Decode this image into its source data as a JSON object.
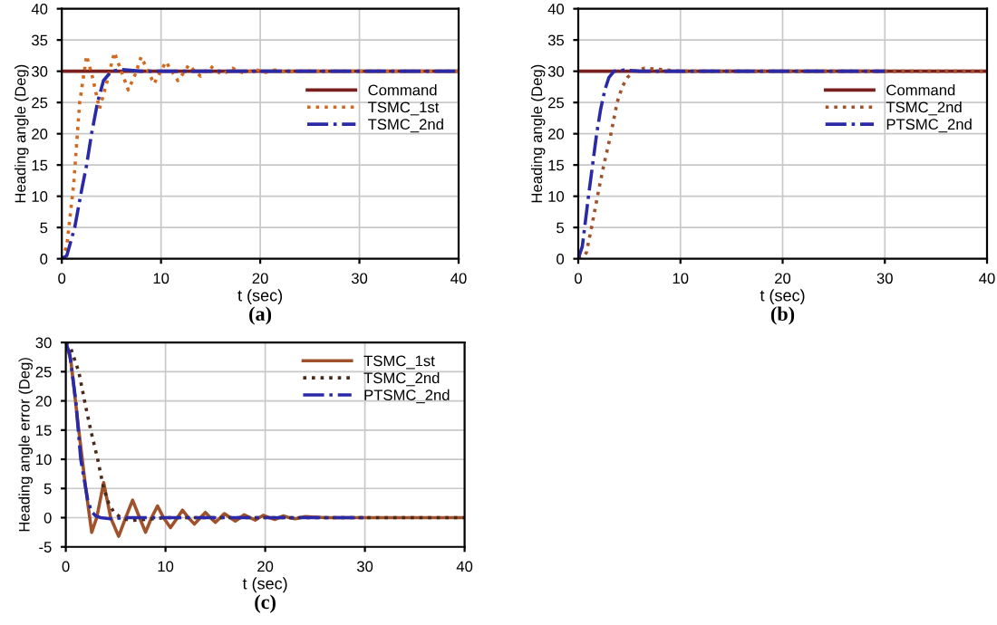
{
  "chart_data": [
    {
      "type": "line",
      "xlabel": "t (sec)",
      "ylabel": "Heading angle (Deg)",
      "annotations": [
        "(a)"
      ],
      "xlim": [
        0,
        40
      ],
      "ylim": [
        0,
        40
      ],
      "xticks": [
        0,
        10,
        20,
        30,
        40
      ],
      "yticks": [
        0,
        5,
        10,
        15,
        20,
        25,
        30,
        35,
        40
      ],
      "grid": true,
      "legend": "right",
      "marker": "none",
      "series": [
        {
          "name": "Command",
          "color": "#7a1f1f",
          "line_style": "solid",
          "x": [
            0,
            40
          ],
          "values": [
            30,
            30
          ]
        },
        {
          "name": "TSMC_1st",
          "color": "#d2691e",
          "line_style": "dotted",
          "x": [
            0,
            0.5,
            1.2,
            1.8,
            2.5,
            3.1,
            3.8,
            4.5,
            5.3,
            6.0,
            6.7,
            7.4,
            8.0,
            8.7,
            9.3,
            9.9,
            10.5,
            11.1,
            11.7,
            12.3,
            12.8,
            13.4,
            14.0,
            14.5,
            15.0,
            15.6,
            16.2,
            16.7,
            17.2,
            17.8,
            18.4,
            19.0,
            19.5,
            20.5,
            21.5,
            22.5,
            24,
            40
          ],
          "values": [
            0,
            2,
            12,
            25,
            32.5,
            29,
            24,
            28,
            33,
            30,
            27,
            29.5,
            32.3,
            30,
            28,
            29.8,
            31.5,
            30,
            28.5,
            29.8,
            31,
            30,
            29.2,
            30,
            30.8,
            30,
            29.5,
            30,
            30.5,
            30,
            29.7,
            30,
            30.3,
            29.8,
            30.2,
            29.9,
            30,
            30
          ]
        },
        {
          "name": "TSMC_2nd",
          "color": "#2a2aa8",
          "line_style": "dashdot",
          "x": [
            0,
            0.5,
            1.3,
            2.0,
            2.5,
            3.0,
            3.6,
            4.2,
            5.0,
            6.0,
            8.0,
            40
          ],
          "values": [
            0,
            0.5,
            5,
            11,
            15,
            20,
            25,
            28.5,
            30,
            30.3,
            30,
            30
          ]
        }
      ]
    },
    {
      "type": "line",
      "xlabel": "t (sec)",
      "ylabel": "Heading angle (Deg)",
      "annotations": [
        "(b)"
      ],
      "xlim": [
        0,
        40
      ],
      "ylim": [
        0,
        40
      ],
      "xticks": [
        0,
        10,
        20,
        30,
        40
      ],
      "yticks": [
        0,
        5,
        10,
        15,
        20,
        25,
        30,
        35,
        40
      ],
      "grid": true,
      "legend": "right",
      "marker": "none",
      "series": [
        {
          "name": "Command",
          "color": "#7a1f1f",
          "line_style": "solid",
          "x": [
            0,
            40
          ],
          "values": [
            30,
            30
          ]
        },
        {
          "name": "TSMC_2nd",
          "color": "#a0522d",
          "line_style": "dotted",
          "x": [
            0,
            0.5,
            0.8,
            1.3,
            2.0,
            2.5,
            3.2,
            3.8,
            4.3,
            4.8,
            5.5,
            6.5,
            8.0,
            10,
            40
          ],
          "values": [
            0,
            0.3,
            1,
            5,
            11,
            15,
            20,
            25,
            27.5,
            29,
            30,
            30.5,
            30.3,
            30,
            30
          ]
        },
        {
          "name": "PTSMC_2nd",
          "color": "#2a2aa8",
          "line_style": "dashdot",
          "x": [
            0,
            0.4,
            1.0,
            1.4,
            1.8,
            2.2,
            2.6,
            3.0,
            3.5,
            4.5,
            6,
            30
          ],
          "values": [
            0,
            2,
            10,
            15,
            20,
            24,
            27,
            29,
            30,
            30.2,
            30,
            30
          ]
        }
      ]
    },
    {
      "type": "line",
      "xlabel": "t (sec)",
      "ylabel": "Heading angle error (Deg)",
      "annotations": [
        "(c)"
      ],
      "xlim": [
        0,
        40
      ],
      "ylim": [
        -5,
        30
      ],
      "xticks": [
        0,
        10,
        20,
        30,
        40
      ],
      "yticks": [
        -5,
        0,
        5,
        10,
        15,
        20,
        25,
        30
      ],
      "grid": true,
      "legend": "top right",
      "marker": "none",
      "series": [
        {
          "name": "TSMC_1st",
          "color": "#a0522d",
          "line_style": "solid",
          "x": [
            0,
            0.5,
            1.3,
            2.0,
            2.6,
            3.1,
            3.8,
            4.5,
            5.3,
            6.0,
            6.7,
            7.4,
            8.0,
            8.6,
            9.2,
            9.8,
            10.5,
            11.2,
            11.7,
            12.3,
            12.9,
            13.5,
            14.0,
            14.5,
            15.0,
            15.5,
            15.9,
            16.5,
            17.0,
            17.5,
            17.9,
            18.5,
            19.0,
            19.4,
            19.8,
            20.4,
            21.0,
            21.4,
            21.8,
            22.4,
            23.0,
            23.5,
            24.0,
            26,
            40
          ],
          "values": [
            30,
            27,
            15,
            5,
            -2.5,
            0,
            6,
            0,
            -3.2,
            0,
            3,
            0,
            -2.5,
            0,
            2,
            0,
            -1.7,
            0,
            1.3,
            0,
            -1.1,
            0,
            0.9,
            0,
            -0.8,
            0,
            0.7,
            0,
            -0.6,
            0,
            0.5,
            0,
            -0.4,
            0,
            0.4,
            0,
            -0.3,
            0,
            0.3,
            0,
            -0.2,
            0,
            0.2,
            0,
            0
          ]
        },
        {
          "name": "TSMC_2nd",
          "color": "#4a2a1a",
          "line_style": "dotted",
          "x": [
            0,
            0.5,
            1.3,
            2.0,
            2.5,
            3.2,
            3.8,
            4.3,
            4.8,
            5.5,
            6.5,
            8.0,
            10,
            40
          ],
          "values": [
            30,
            29,
            25,
            19,
            15,
            10,
            5,
            2.5,
            1,
            0,
            -0.5,
            -0.3,
            0,
            0
          ]
        },
        {
          "name": "PTSMC_2nd",
          "color": "#2a2aa8",
          "line_style": "dashdot",
          "x": [
            0,
            0.4,
            1.0,
            1.5,
            2.2,
            2.6,
            3.0,
            3.5,
            4.5,
            6,
            30
          ],
          "values": [
            30,
            28,
            20,
            10,
            3,
            1,
            0.3,
            0,
            -0.2,
            0,
            0
          ]
        }
      ]
    }
  ]
}
